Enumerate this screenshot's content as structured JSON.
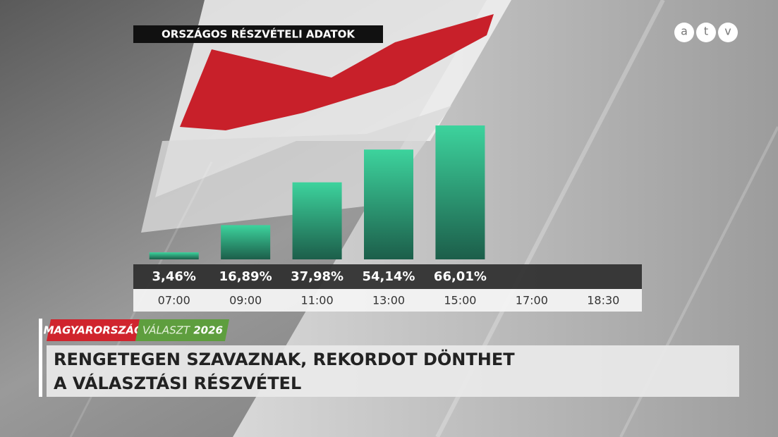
{
  "chart_data": {
    "type": "bar",
    "title": "ORSZÁGOS RÉSZVÉTELI ADATOK",
    "categories": [
      "07:00",
      "09:00",
      "11:00",
      "13:00",
      "15:00",
      "17:00",
      "18:30"
    ],
    "values": [
      3.46,
      16.89,
      37.98,
      54.14,
      66.01,
      null,
      null
    ],
    "value_labels": [
      "3,46%",
      "16,89%",
      "37,98%",
      "54,14%",
      "66,01%",
      null,
      null
    ],
    "color": "#3dd39d"
  },
  "logo": [
    "a",
    "t",
    "v"
  ],
  "lower_third": {
    "tag": "MAGYARORSZÁG",
    "section": "VÁLASZT",
    "year": "2026",
    "headline": [
      "RENGETEGEN SZAVAZNAK, REKORDOT DÖNTHET",
      "A VÁLASZTÁSI RÉSZVÉTEL"
    ]
  }
}
